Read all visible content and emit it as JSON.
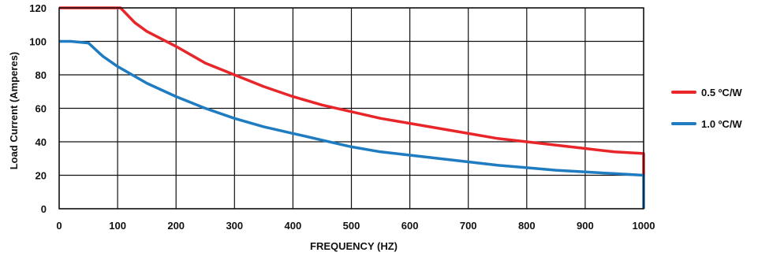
{
  "chart_data": {
    "type": "line",
    "title": "",
    "xlabel": "FREQUENCY (HZ)",
    "ylabel": "Load Current (Amperes)",
    "xlim": [
      0,
      1000
    ],
    "ylim": [
      0,
      120
    ],
    "xticks": [
      "0",
      "100",
      "200",
      "300",
      "400",
      "500",
      "600",
      "700",
      "800",
      "900",
      "1000"
    ],
    "yticks": [
      "0",
      "20",
      "40",
      "60",
      "80",
      "100",
      "120"
    ],
    "grid": true,
    "legend_position": "right",
    "series": [
      {
        "name": "0.5 ºC/W",
        "color": "#e8262a",
        "x": [
          0,
          100,
          105,
          130,
          150,
          200,
          250,
          300,
          350,
          400,
          450,
          500,
          550,
          600,
          650,
          700,
          750,
          800,
          850,
          900,
          950,
          1000,
          1000
        ],
        "y": [
          120,
          120,
          120,
          111,
          106,
          97,
          87,
          80,
          73,
          67,
          62,
          58,
          54,
          51,
          48,
          45,
          42,
          40,
          38,
          36,
          34,
          33,
          20
        ]
      },
      {
        "name": "1.0 ºC/W",
        "color": "#1f7cc0",
        "x": [
          0,
          20,
          50,
          75,
          100,
          150,
          200,
          250,
          300,
          350,
          400,
          450,
          500,
          550,
          600,
          650,
          700,
          750,
          800,
          850,
          900,
          950,
          1000,
          1000
        ],
        "y": [
          100,
          100,
          99,
          91,
          85,
          75,
          67,
          60,
          54,
          49,
          45,
          41,
          37,
          34,
          32,
          30,
          28,
          26,
          24.5,
          23,
          22,
          21,
          20,
          0
        ]
      }
    ]
  }
}
